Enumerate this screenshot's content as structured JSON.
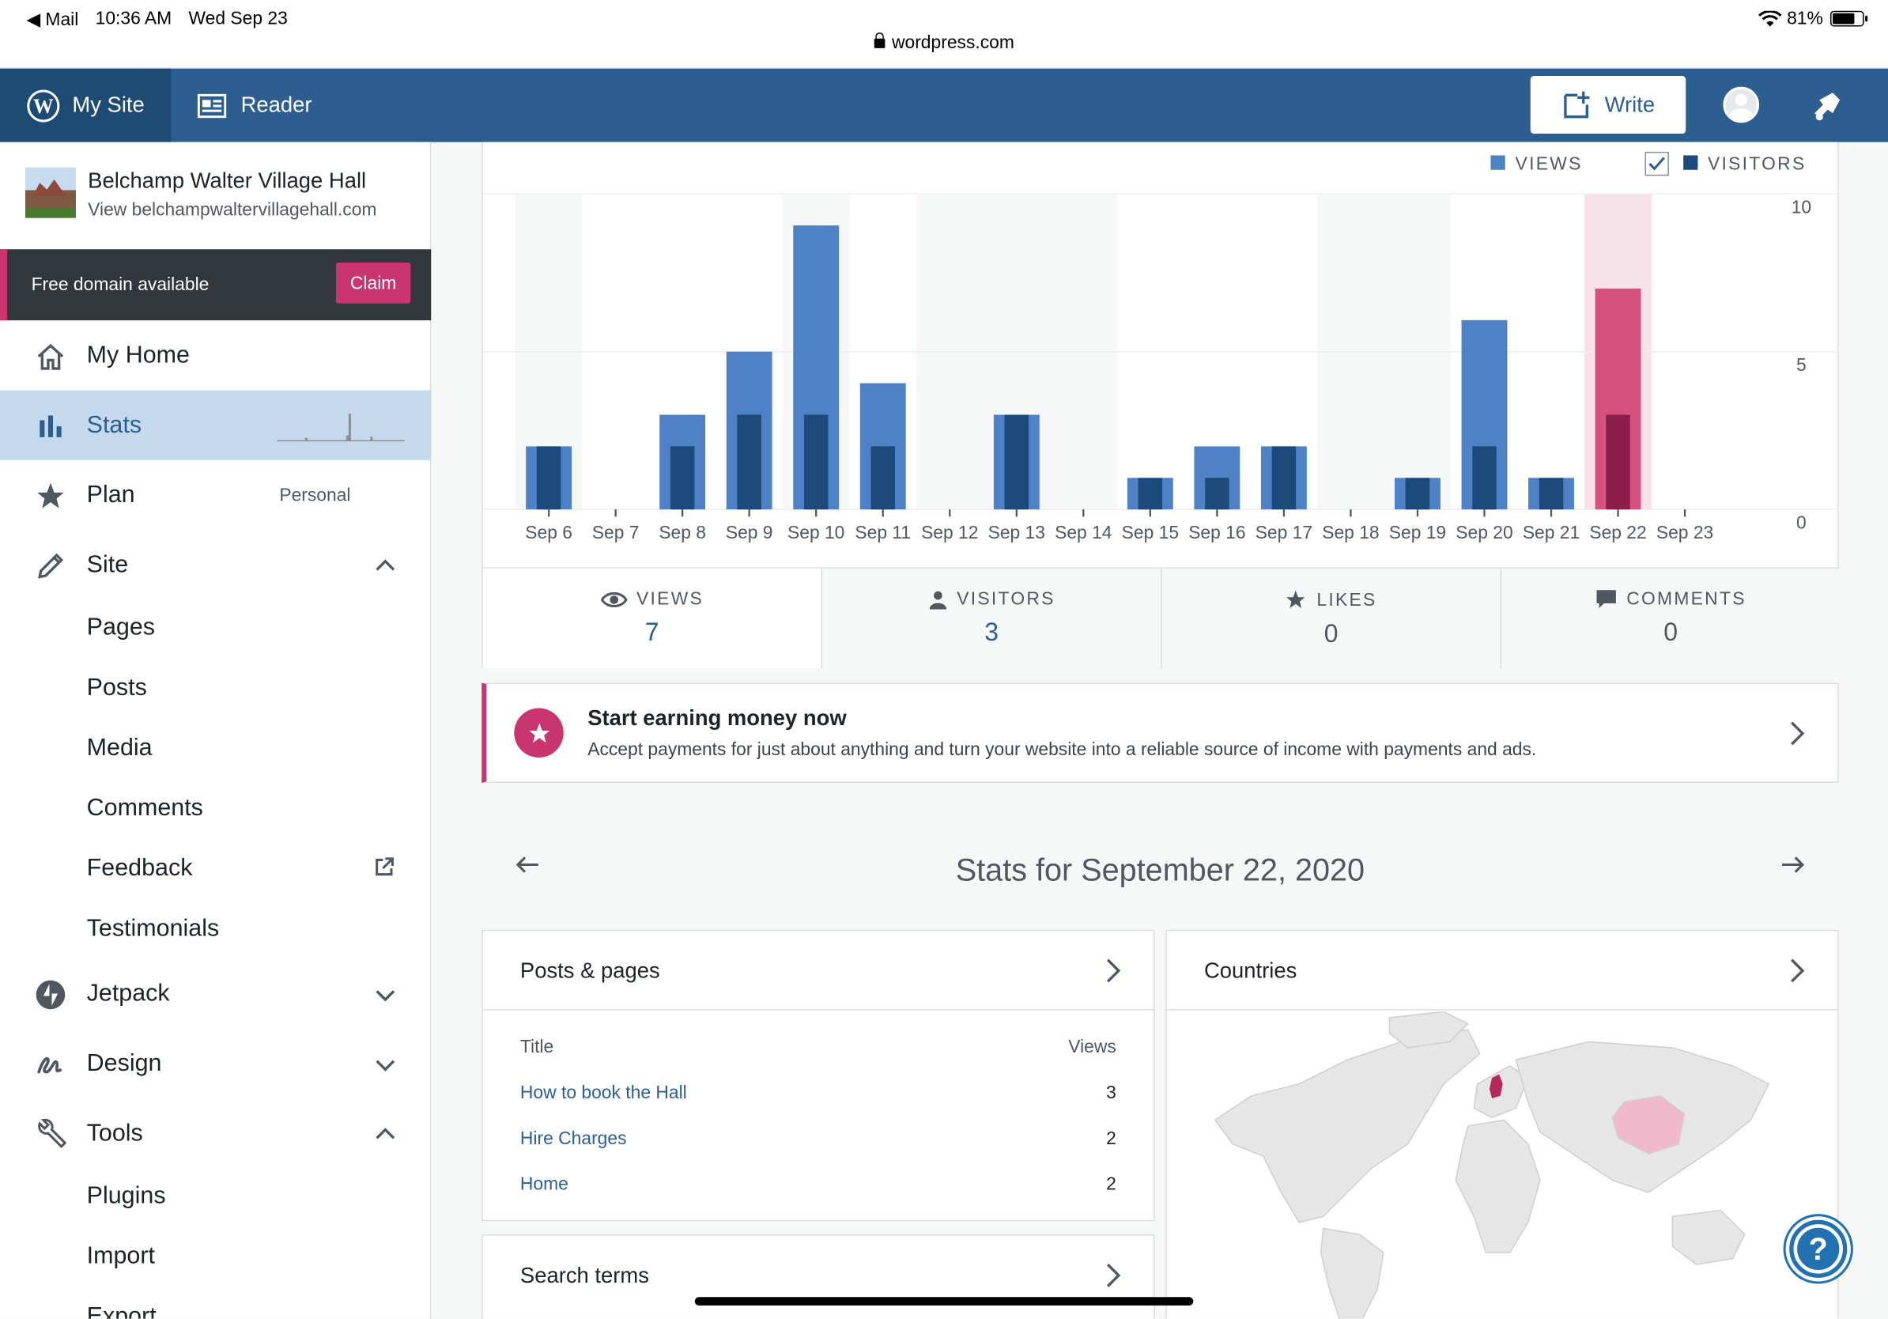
{
  "status_bar": {
    "back_app": "Mail",
    "time": "10:36 AM",
    "date": "Wed Sep 23",
    "url": "wordpress.com",
    "battery": "81%"
  },
  "masterbar": {
    "my_site": "My Site",
    "reader": "Reader",
    "write": "Write"
  },
  "sidebar": {
    "site_title": "Belchamp Walter Village Hall",
    "site_url": "View belchampwaltervillagehall.com",
    "domain_text": "Free domain available",
    "claim": "Claim",
    "my_home": "My Home",
    "stats": "Stats",
    "plan": "Plan",
    "plan_badge": "Personal",
    "site": "Site",
    "site_items": [
      "Pages",
      "Posts",
      "Media",
      "Comments",
      "Feedback",
      "Testimonials"
    ],
    "jetpack": "Jetpack",
    "design": "Design",
    "tools": "Tools",
    "tools_items": [
      "Plugins",
      "Import",
      "Export"
    ]
  },
  "chart_data": {
    "type": "bar",
    "categories": [
      "Sep 6",
      "Sep 7",
      "Sep 8",
      "Sep 9",
      "Sep 10",
      "Sep 11",
      "Sep 12",
      "Sep 13",
      "Sep 14",
      "Sep 15",
      "Sep 16",
      "Sep 17",
      "Sep 18",
      "Sep 19",
      "Sep 20",
      "Sep 21",
      "Sep 22",
      "Sep 23"
    ],
    "series": [
      {
        "name": "VIEWS",
        "values": [
          2,
          0,
          3,
          5,
          9,
          4,
          0,
          3,
          0,
          1,
          2,
          2,
          0,
          1,
          6,
          1,
          7,
          0
        ]
      },
      {
        "name": "VISITORS",
        "values": [
          2,
          0,
          2,
          3,
          3,
          2,
          0,
          3,
          0,
          1,
          1,
          2,
          0,
          1,
          2,
          1,
          3,
          0
        ]
      }
    ],
    "y_ticks": [
      "10",
      "5",
      "0"
    ],
    "ylim": [
      0,
      10
    ],
    "selected_category": "Sep 22",
    "colors": {
      "views": "#4f81c7",
      "visitors": "#1c4a7a",
      "views_selected": "#d5527f",
      "visitors_selected": "#8a1e4b"
    }
  },
  "legend": {
    "views": "VIEWS",
    "visitors": "VISITORS"
  },
  "summary_tabs": [
    {
      "label": "VIEWS",
      "value": "7"
    },
    {
      "label": "VISITORS",
      "value": "3"
    },
    {
      "label": "LIKES",
      "value": "0"
    },
    {
      "label": "COMMENTS",
      "value": "0"
    }
  ],
  "earn": {
    "title": "Start earning money now",
    "description": "Accept payments for just about anything and turn your website into a reliable source of income with payments and ads."
  },
  "stats_date": "Stats for September 22, 2020",
  "posts_pages": {
    "title": "Posts & pages",
    "col_title": "Title",
    "col_views": "Views",
    "rows": [
      {
        "title": "How to book the Hall",
        "views": "3"
      },
      {
        "title": "Hire Charges",
        "views": "2"
      },
      {
        "title": "Home",
        "views": "2"
      }
    ]
  },
  "search_terms": {
    "title": "Search terms"
  },
  "countries": {
    "title": "Countries"
  }
}
